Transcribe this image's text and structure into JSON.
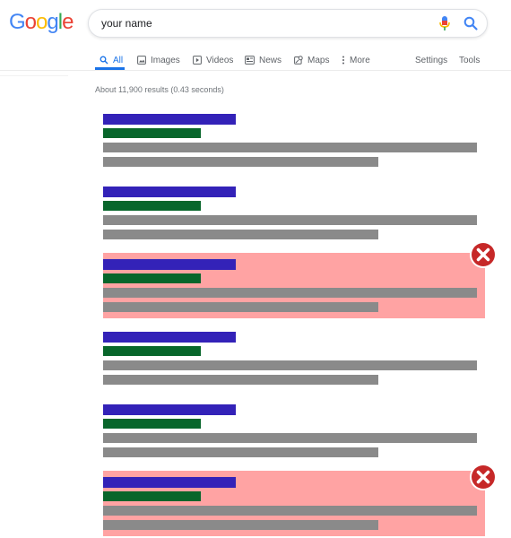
{
  "logo": {
    "letters": [
      "G",
      "o",
      "o",
      "g",
      "l",
      "e"
    ],
    "colors": [
      "#4285f4",
      "#ea4335",
      "#fbbc05",
      "#4285f4",
      "#34a853",
      "#ea4335"
    ]
  },
  "search": {
    "value": "your name",
    "icons": [
      "mic-icon",
      "search-icon"
    ]
  },
  "tabs": [
    {
      "label": "All",
      "icon": "search-icon",
      "active": true
    },
    {
      "label": "Images",
      "icon": "image-icon"
    },
    {
      "label": "Videos",
      "icon": "video-icon"
    },
    {
      "label": "News",
      "icon": "news-icon"
    },
    {
      "label": "Maps",
      "icon": "map-icon"
    },
    {
      "label": "More",
      "icon": "more-vertical-icon"
    },
    {
      "label": "Settings"
    },
    {
      "label": "Tools"
    }
  ],
  "stats": {
    "text": "About 11,900 results (0.43 seconds)"
  },
  "results": [
    {
      "flagged": false
    },
    {
      "flagged": false
    },
    {
      "flagged": true,
      "flag_icon": "close-circle-icon"
    },
    {
      "flagged": false
    },
    {
      "flagged": false
    },
    {
      "flagged": true,
      "flag_icon": "close-circle-icon"
    }
  ],
  "colors": {
    "title_bar": "#3322b8",
    "url_bar": "#08662b",
    "snippet_bar": "#8a8a8a",
    "flag_background": "#ffa3a3",
    "flag_icon": "#c62828",
    "accent": "#1a73e8"
  }
}
